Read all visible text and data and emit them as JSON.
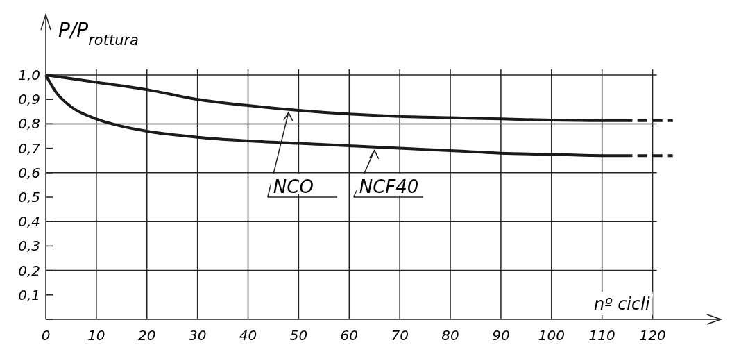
{
  "chart_data": {
    "type": "line",
    "ylabel": "P/P$_{rottura}$",
    "xlabel": "nº cicli",
    "xlim": [
      0,
      125
    ],
    "ylim": [
      0,
      1.0
    ],
    "xticks": [
      0,
      10,
      20,
      30,
      40,
      50,
      60,
      70,
      80,
      90,
      100,
      110,
      120
    ],
    "yticks": [
      {
        "value": 0,
        "label": null
      },
      {
        "value": 0.1,
        "label": "0,1"
      },
      {
        "value": 0.2,
        "label": "0,2"
      },
      {
        "value": 0.3,
        "label": "0,3"
      },
      {
        "value": 0.4,
        "label": "0,4"
      },
      {
        "value": 0.5,
        "label": "0,5"
      },
      {
        "value": 0.6,
        "label": "0,6"
      },
      {
        "value": 0.7,
        "label": "0,7"
      },
      {
        "value": 0.8,
        "label": "0,8"
      },
      {
        "value": 0.9,
        "label": "0,9"
      },
      {
        "value": 1.0,
        "label": "1,0"
      }
    ],
    "grid": true,
    "marker": "none",
    "series": [
      {
        "color": "#1a1a1a",
        "line_style": "solid",
        "x": [
          0,
          10,
          20,
          30,
          40,
          50,
          60,
          70,
          80,
          90,
          100,
          110,
          116
        ],
        "values": [
          1.0,
          0.97,
          0.94,
          0.9,
          0.875,
          0.855,
          0.84,
          0.83,
          0.825,
          0.82,
          0.815,
          0.813,
          0.813
        ]
      },
      {
        "color": "#1a1a1a",
        "line_style": "solid",
        "x": [
          0,
          2,
          5,
          10,
          15,
          20,
          30,
          40,
          50,
          60,
          70,
          80,
          90,
          100,
          110,
          116
        ],
        "values": [
          1.0,
          0.93,
          0.87,
          0.82,
          0.79,
          0.77,
          0.745,
          0.73,
          0.72,
          0.71,
          0.7,
          0.69,
          0.68,
          0.675,
          0.67,
          0.67
        ]
      },
      {
        "color": "#1a1a1a",
        "line_style": "dashed",
        "x": [
          117,
          124
        ],
        "values": [
          0.813,
          0.813
        ]
      },
      {
        "color": "#1a1a1a",
        "line_style": "dashed",
        "x": [
          117,
          124
        ],
        "values": [
          0.67,
          0.67
        ]
      }
    ],
    "annotations": [
      {
        "text": "NCO",
        "x": 48,
        "y": 0.855
      },
      {
        "text": "NCF40",
        "x": 65,
        "y": 0.7
      }
    ]
  }
}
